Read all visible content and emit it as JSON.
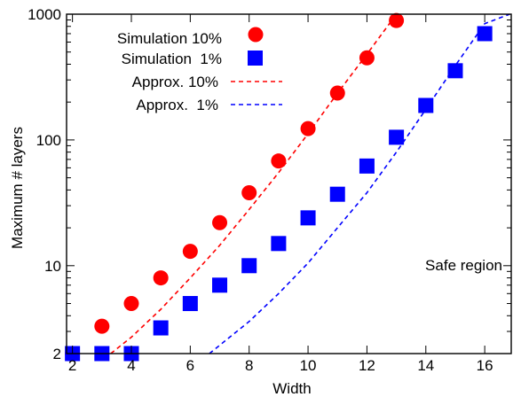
{
  "chart_data": {
    "type": "scatter",
    "xlabel": "Width",
    "ylabel": "Maximum # layers",
    "xlim": [
      1.8,
      16.9
    ],
    "ylim": [
      2,
      1000
    ],
    "y_scale": "log",
    "x_ticks": [
      2,
      4,
      6,
      8,
      10,
      12,
      14,
      16
    ],
    "x_tick_labels": [
      "2",
      "4",
      "6",
      "8",
      "10",
      "12",
      "14",
      "16"
    ],
    "y_ticks": [
      2,
      10,
      100,
      1000
    ],
    "y_tick_labels": [
      "2",
      "10",
      "100",
      "1000"
    ],
    "grid": false,
    "legend_position": "top-left",
    "annotation": "Safe region",
    "series": [
      {
        "name": "Simulation 10%",
        "kind": "points",
        "marker": "circle",
        "color": "#ff0000",
        "x": [
          2,
          3,
          4,
          5,
          6,
          7,
          8,
          9,
          10,
          11,
          12,
          13
        ],
        "y": [
          2,
          3.3,
          5,
          8,
          13,
          22,
          38,
          68,
          123,
          236,
          450,
          890
        ]
      },
      {
        "name": "Simulation  1%",
        "kind": "points",
        "marker": "square",
        "color": "#0000ff",
        "x": [
          2,
          3,
          4,
          5,
          6,
          7,
          8,
          9,
          10,
          11,
          12,
          13,
          14,
          15,
          16
        ],
        "y": [
          2,
          2,
          2,
          3.2,
          5,
          7,
          10,
          15,
          24,
          37,
          62,
          105,
          188,
          355,
          700
        ]
      },
      {
        "name": "Approx. 10%",
        "kind": "line",
        "style": "dashed",
        "color": "#ff0000",
        "x": [
          3.3,
          4,
          5,
          6,
          7,
          8,
          9,
          10,
          11,
          12,
          13
        ],
        "y": [
          2,
          2.7,
          4.5,
          8,
          14.5,
          28,
          55,
          112,
          235,
          480,
          1000
        ]
      },
      {
        "name": "Approx.  1%",
        "kind": "line",
        "style": "dashed",
        "color": "#0000ff",
        "x": [
          6.65,
          8,
          9,
          10,
          11,
          12,
          13,
          14,
          15,
          16,
          16.85
        ],
        "y": [
          2,
          3.6,
          6,
          10.5,
          20,
          38,
          80,
          175,
          390,
          840,
          1000
        ]
      }
    ]
  }
}
